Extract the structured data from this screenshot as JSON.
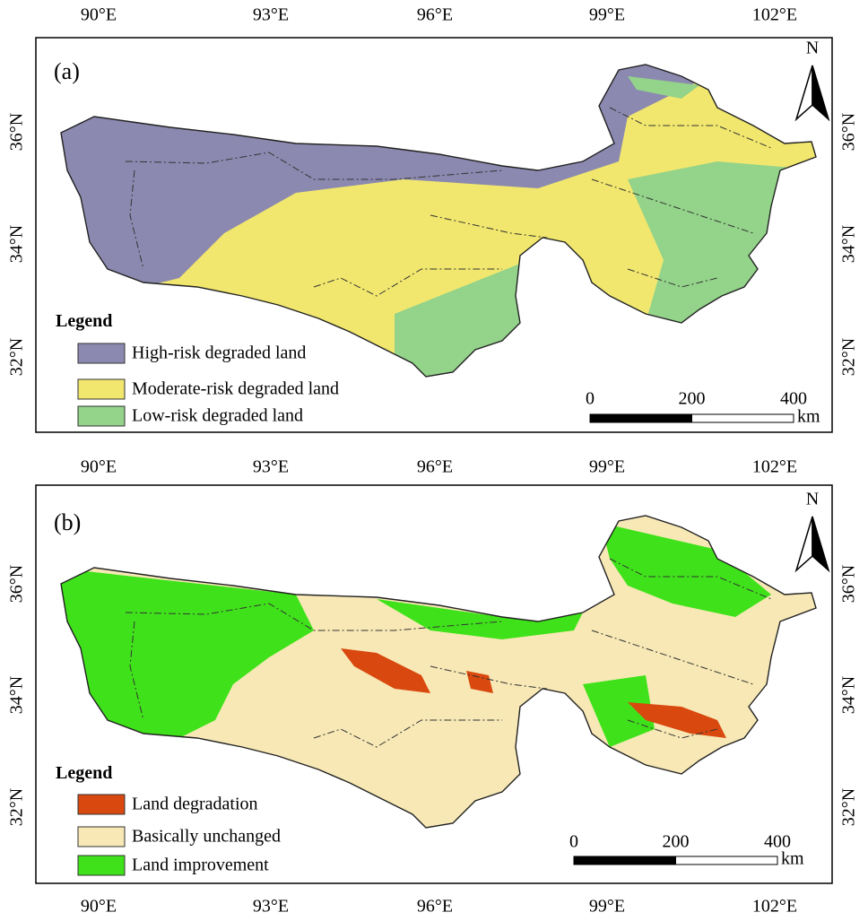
{
  "lon_labels": [
    "90°E",
    "93°E",
    "96°E",
    "99°E",
    "102°E"
  ],
  "lat_labels": [
    "36°N",
    "34°N",
    "32°N"
  ],
  "panels": [
    {
      "label": "(a)",
      "north": "N",
      "legend_title": "Legend",
      "legend": [
        {
          "label": "High-risk degraded land",
          "color": "#8c89b0"
        },
        {
          "label": "Moderate-risk degraded land",
          "color": "#f1e76e"
        },
        {
          "label": "Low-risk degraded land",
          "color": "#93d38a"
        }
      ],
      "scale": {
        "ticks": [
          "0",
          "200",
          "400"
        ],
        "unit": "km"
      }
    },
    {
      "label": "(b)",
      "north": "N",
      "legend_title": "Legend",
      "legend": [
        {
          "label": "Land degradation",
          "color": "#d9480f"
        },
        {
          "label": "Basically unchanged",
          "color": "#f7e8b5"
        },
        {
          "label": "Land improvement",
          "color": "#3fe21a"
        }
      ],
      "scale": {
        "ticks": [
          "0",
          "200",
          "400"
        ],
        "unit": "km"
      }
    }
  ]
}
